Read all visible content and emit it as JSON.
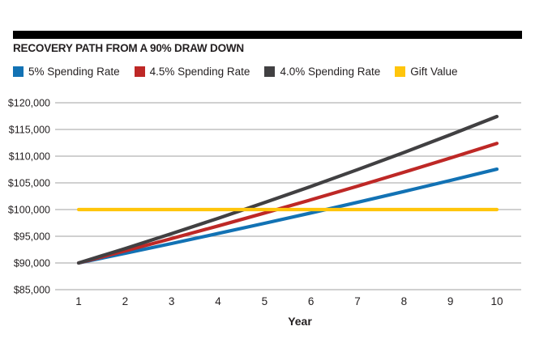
{
  "header": {
    "title": "RECOVERY PATH FROM A 90% DRAW DOWN"
  },
  "colors": {
    "divider_bar": "#000000",
    "gridline": "#B3B3B3",
    "text": "#231F20"
  },
  "chart_data": {
    "type": "line",
    "title": "RECOVERY PATH FROM A 90% DRAW DOWN",
    "xlabel": "Year",
    "x": [
      1,
      2,
      3,
      4,
      5,
      6,
      7,
      8,
      9,
      10
    ],
    "xlim": [
      1,
      10
    ],
    "ylim": [
      85000,
      120000
    ],
    "y_tick_values": [
      85000,
      90000,
      95000,
      100000,
      105000,
      110000,
      115000,
      120000
    ],
    "y_tick_labels": [
      "$85,000",
      "$90,000",
      "$95,000",
      "$100,000",
      "$105,000",
      "$110,000",
      "$115,000",
      "$120,000"
    ],
    "grid": "horizontal",
    "legend_position": "top",
    "series": [
      {
        "name": "5% Spending Rate",
        "color": "#1272B4",
        "values": [
          90000,
          91800,
          93636,
          95509,
          97419,
          99367,
          101355,
          103382,
          105449,
          107558
        ]
      },
      {
        "name": "4.5% Spending Rate",
        "color": "#BE2826",
        "values": [
          90000,
          92250,
          94556,
          96920,
          99343,
          101827,
          104373,
          106982,
          109657,
          112398
        ]
      },
      {
        "name": "4.0% Spending Rate",
        "color": "#414042",
        "values": [
          90000,
          92700,
          95481,
          98345,
          101296,
          104335,
          107465,
          110689,
          114009,
          117430
        ]
      },
      {
        "name": "Gift Value",
        "color": "#FFC50B",
        "values": [
          100000,
          100000,
          100000,
          100000,
          100000,
          100000,
          100000,
          100000,
          100000,
          100000
        ]
      }
    ]
  }
}
